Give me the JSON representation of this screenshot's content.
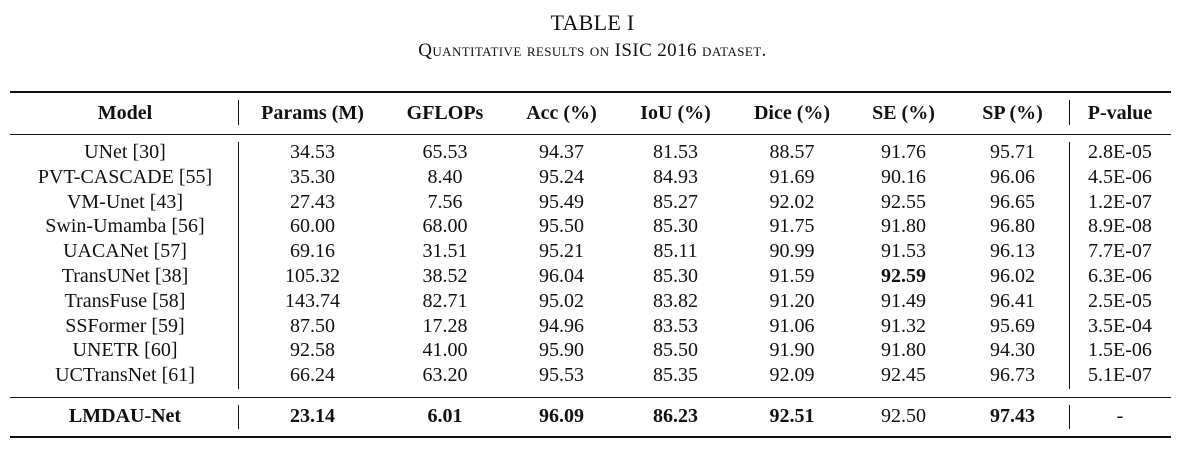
{
  "caption": {
    "number": "TABLE I",
    "title": "Quantitative results on ISIC 2016 dataset."
  },
  "table": {
    "headers": [
      "Model",
      "Params (M)",
      "GFLOPs",
      "Acc (%)",
      "IoU (%)",
      "Dice (%)",
      "SE (%)",
      "SP (%)",
      "P-value"
    ],
    "rows": [
      [
        "UNet [30]",
        "34.53",
        "65.53",
        "94.37",
        "81.53",
        "88.57",
        "91.76",
        "95.71",
        "2.8E-05"
      ],
      [
        "PVT-CASCADE [55]",
        "35.30",
        "8.40",
        "95.24",
        "84.93",
        "91.69",
        "90.16",
        "96.06",
        "4.5E-06"
      ],
      [
        "VM-Unet [43]",
        "27.43",
        "7.56",
        "95.49",
        "85.27",
        "92.02",
        "92.55",
        "96.65",
        "1.2E-07"
      ],
      [
        "Swin-Umamba [56]",
        "60.00",
        "68.00",
        "95.50",
        "85.30",
        "91.75",
        "91.80",
        "96.80",
        "8.9E-08"
      ],
      [
        "UACANet [57]",
        "69.16",
        "31.51",
        "95.21",
        "85.11",
        "90.99",
        "91.53",
        "96.13",
        "7.7E-07"
      ],
      [
        "TransUNet [38]",
        "105.32",
        "38.52",
        "96.04",
        "85.30",
        "91.59",
        "92.59",
        "96.02",
        "6.3E-06"
      ],
      [
        "TransFuse [58]",
        "143.74",
        "82.71",
        "95.02",
        "83.82",
        "91.20",
        "91.49",
        "96.41",
        "2.5E-05"
      ],
      [
        "SSFormer [59]",
        "87.50",
        "17.28",
        "94.96",
        "83.53",
        "91.06",
        "91.32",
        "95.69",
        "3.5E-04"
      ],
      [
        "UNETR [60]",
        "92.58",
        "41.00",
        "95.90",
        "85.50",
        "91.90",
        "91.80",
        "94.30",
        "1.5E-06"
      ],
      [
        "UCTransNet [61]",
        "66.24",
        "63.20",
        "95.53",
        "85.35",
        "92.09",
        "92.45",
        "96.73",
        "5.1E-07"
      ]
    ],
    "bold_cells": [
      [
        5,
        6
      ]
    ],
    "summary": [
      "LMDAU-Net",
      "23.14",
      "6.01",
      "96.09",
      "86.23",
      "92.51",
      "92.50",
      "97.43",
      "-"
    ],
    "summary_plain_cols": [
      6,
      8
    ]
  }
}
